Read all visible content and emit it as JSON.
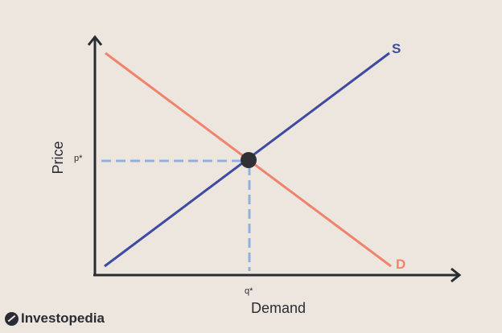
{
  "labels": {
    "supply": "S",
    "demand_curve": "D",
    "y_axis": "Price",
    "x_axis": "Demand",
    "equilibrium_price": "p*",
    "equilibrium_quantity": "q*"
  },
  "brand": {
    "name": "Investopedia"
  },
  "colors": {
    "supply": "#3f4aa3",
    "demand": "#f0836d",
    "guide": "#8fb1e0",
    "axis": "#2a2c34",
    "point": "#2f3137",
    "background": "#ece6df"
  }
}
